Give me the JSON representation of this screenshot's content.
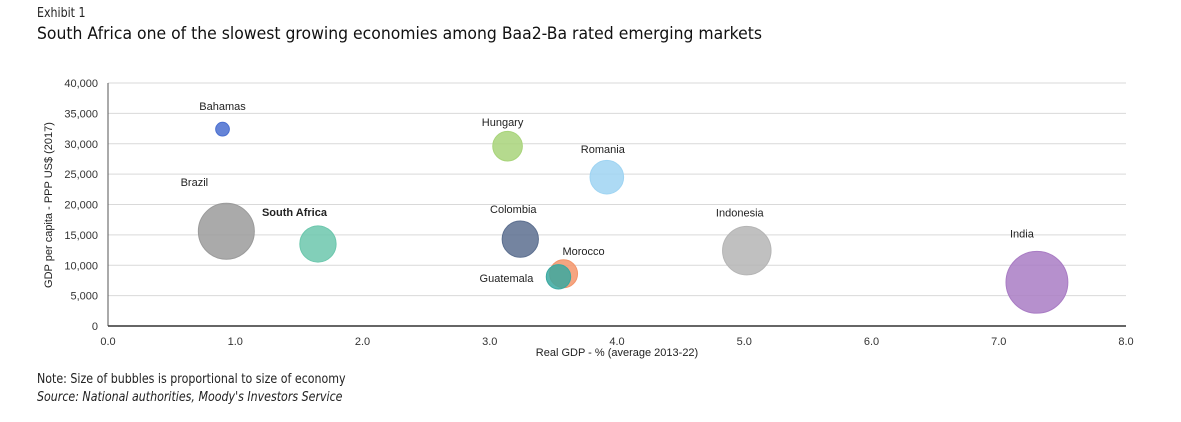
{
  "header": {
    "exhibit": "Exhibit 1",
    "title": "South Africa one of the slowest growing economies among Baa2-Ba rated emerging markets"
  },
  "footer": {
    "note": "Note: Size of bubbles is proportional to size of economy",
    "source": "Source: National authorities, Moody's Investors Service"
  },
  "chart_data": {
    "type": "scatter",
    "subtype": "bubble",
    "title": "South Africa one of the slowest growing economies among Baa2-Ba rated emerging markets",
    "xlabel": "Real GDP - % (average 2013-22)",
    "ylabel": "GDP per capita - PPP US$ (2017)",
    "xlim": [
      0,
      8
    ],
    "ylim": [
      0,
      40000
    ],
    "xticks": [
      "0.0",
      "1.0",
      "2.0",
      "3.0",
      "4.0",
      "5.0",
      "6.0",
      "7.0",
      "8.0"
    ],
    "yticks": [
      "0",
      "5,000",
      "10,000",
      "15,000",
      "20,000",
      "25,000",
      "30,000",
      "35,000",
      "40,000"
    ],
    "grid": "horizontal",
    "points": [
      {
        "name": "Bahamas",
        "x": 0.9,
        "y": 32400,
        "size": 0.06,
        "color": "#4a6fd0",
        "label_bold": false
      },
      {
        "name": "Brazil",
        "x": 0.93,
        "y": 15600,
        "size": 1.0,
        "color": "#9b9b9b",
        "label_bold": false
      },
      {
        "name": "South Africa",
        "x": 1.65,
        "y": 13500,
        "size": 0.42,
        "color": "#6cc7ad",
        "label_bold": true
      },
      {
        "name": "Hungary",
        "x": 3.14,
        "y": 29600,
        "size": 0.28,
        "color": "#a8d47a",
        "label_bold": false
      },
      {
        "name": "Romania",
        "x": 3.92,
        "y": 24500,
        "size": 0.36,
        "color": "#9fd4f2",
        "label_bold": false
      },
      {
        "name": "Colombia",
        "x": 3.24,
        "y": 14300,
        "size": 0.42,
        "color": "#5c6f8f",
        "label_bold": false
      },
      {
        "name": "Morocco",
        "x": 3.58,
        "y": 8600,
        "size": 0.25,
        "color": "#f3956b",
        "label_bold": false
      },
      {
        "name": "Guatemala",
        "x": 3.54,
        "y": 8100,
        "size": 0.19,
        "color": "#3aa8a0",
        "label_bold": false
      },
      {
        "name": "Indonesia",
        "x": 5.02,
        "y": 12400,
        "size": 0.75,
        "color": "#b5b5b5",
        "label_bold": false
      },
      {
        "name": "India",
        "x": 7.3,
        "y": 7200,
        "size": 1.22,
        "color": "#a97cc4",
        "label_bold": false
      }
    ]
  }
}
